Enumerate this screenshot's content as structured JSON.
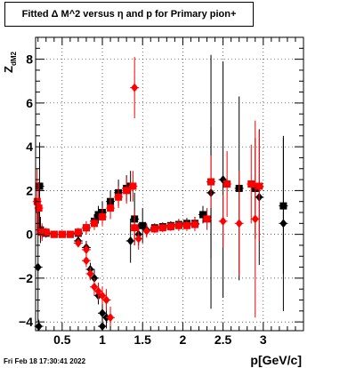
{
  "title": "Fitted Δ M^2 versus η and p for Primary pion+",
  "footer_timestamp": "Fri Feb 18 17:30:41 2022",
  "chart_data": {
    "type": "scatter",
    "title": "Fitted Δ M^2 versus η and p for Primary pion+",
    "xlabel": "p[GeV/c]",
    "ylabel_main": "Z",
    "ylabel_sub": "dM2",
    "xlim": [
      0.17,
      3.5
    ],
    "ylim": [
      -4.4,
      9.0
    ],
    "x_ticks": [
      0.5,
      1,
      1.5,
      2,
      2.5,
      3
    ],
    "x_tick_labels": [
      "0.5",
      "1",
      "1.5",
      "2",
      "2.5",
      "3"
    ],
    "y_ticks": [
      -4,
      -2,
      0,
      2,
      4,
      6,
      8
    ],
    "y_tick_labels": [
      "−4",
      "−2",
      "0",
      "2",
      "4",
      "6",
      "8"
    ],
    "grid": true,
    "colors": {
      "black_series": "#000000",
      "red_series": "#ff0000"
    },
    "series": [
      {
        "color": "black",
        "marker_shapes": "square and diamond",
        "points": [
          {
            "x": 0.22,
            "y": 2.2,
            "yerr": 2.0,
            "shape": "square"
          },
          {
            "x": 0.2,
            "y": -1.5,
            "yerr": 2.5,
            "shape": "diamond"
          },
          {
            "x": 0.21,
            "y": -4.2,
            "yerr": 0.3,
            "shape": "diamond"
          },
          {
            "x": 0.23,
            "y": 0.2,
            "yerr": 0.6,
            "shape": "square"
          },
          {
            "x": 0.25,
            "y": 0.1,
            "yerr": 0.3,
            "shape": "square"
          },
          {
            "x": 0.3,
            "y": 0.05,
            "yerr": 0.2,
            "shape": "square"
          },
          {
            "x": 0.4,
            "y": 0.0,
            "yerr": 0.15,
            "shape": "square"
          },
          {
            "x": 0.5,
            "y": 0.0,
            "yerr": 0.15,
            "shape": "square"
          },
          {
            "x": 0.6,
            "y": 0.0,
            "yerr": 0.15,
            "shape": "square"
          },
          {
            "x": 0.7,
            "y": 0.05,
            "yerr": 0.2,
            "shape": "square"
          },
          {
            "x": 0.8,
            "y": 0.3,
            "yerr": 0.3,
            "shape": "square"
          },
          {
            "x": 0.9,
            "y": 0.6,
            "yerr": 0.3,
            "shape": "square"
          },
          {
            "x": 0.95,
            "y": 0.9,
            "yerr": 0.4,
            "shape": "square"
          },
          {
            "x": 1.0,
            "y": 1.0,
            "yerr": 0.5,
            "shape": "square"
          },
          {
            "x": 1.1,
            "y": 1.5,
            "yerr": 0.5,
            "shape": "square"
          },
          {
            "x": 1.2,
            "y": 1.9,
            "yerr": 0.6,
            "shape": "square"
          },
          {
            "x": 1.3,
            "y": 2.1,
            "yerr": 0.6,
            "shape": "square"
          },
          {
            "x": 1.35,
            "y": 2.2,
            "yerr": 0.7,
            "shape": "square"
          },
          {
            "x": 0.7,
            "y": -0.3,
            "yerr": 0.2,
            "shape": "diamond"
          },
          {
            "x": 0.8,
            "y": -0.6,
            "yerr": 0.3,
            "shape": "diamond"
          },
          {
            "x": 0.85,
            "y": -1.6,
            "yerr": 0.3,
            "shape": "diamond"
          },
          {
            "x": 0.9,
            "y": -2.0,
            "yerr": 0.4,
            "shape": "diamond"
          },
          {
            "x": 0.95,
            "y": -2.8,
            "yerr": 0.4,
            "shape": "diamond"
          },
          {
            "x": 1.0,
            "y": -3.6,
            "yerr": 0.5,
            "shape": "diamond"
          },
          {
            "x": 1.05,
            "y": -3.8,
            "yerr": 0.5,
            "shape": "diamond"
          },
          {
            "x": 1.0,
            "y": -4.2,
            "yerr": 0.4,
            "shape": "diamond"
          },
          {
            "x": 1.4,
            "y": 0.7,
            "yerr": 1.2,
            "shape": "square"
          },
          {
            "x": 1.35,
            "y": -0.3,
            "yerr": 1.0,
            "shape": "diamond"
          },
          {
            "x": 1.5,
            "y": 0.4,
            "yerr": 0.8,
            "shape": "square"
          },
          {
            "x": 1.45,
            "y": 0.0,
            "yerr": 0.5,
            "shape": "diamond"
          },
          {
            "x": 1.55,
            "y": 0.2,
            "yerr": 0.3,
            "shape": "diamond"
          },
          {
            "x": 1.65,
            "y": 0.3,
            "yerr": 0.2,
            "shape": "square"
          },
          {
            "x": 1.75,
            "y": 0.35,
            "yerr": 0.2,
            "shape": "square"
          },
          {
            "x": 1.85,
            "y": 0.4,
            "yerr": 0.2,
            "shape": "square"
          },
          {
            "x": 1.95,
            "y": 0.45,
            "yerr": 0.25,
            "shape": "square"
          },
          {
            "x": 2.05,
            "y": 0.5,
            "yerr": 0.25,
            "shape": "square"
          },
          {
            "x": 2.15,
            "y": 0.5,
            "yerr": 0.3,
            "shape": "square"
          },
          {
            "x": 2.25,
            "y": 0.9,
            "yerr": 0.4,
            "shape": "square"
          },
          {
            "x": 2.35,
            "y": 2.4,
            "yerr": 5.8,
            "shape": "square"
          },
          {
            "x": 2.35,
            "y": 1.9,
            "yerr": 3.0,
            "shape": "diamond"
          },
          {
            "x": 2.5,
            "y": 2.5,
            "yerr": 5.4,
            "shape": "diamond"
          },
          {
            "x": 2.7,
            "y": 2.1,
            "yerr": 4.2,
            "shape": "square"
          },
          {
            "x": 2.9,
            "y": 2.1,
            "yerr": 2.3,
            "shape": "square"
          },
          {
            "x": 2.95,
            "y": 1.7,
            "yerr": 3.1,
            "shape": "diamond"
          },
          {
            "x": 3.25,
            "y": 1.3,
            "yerr": 3.1,
            "shape": "square"
          },
          {
            "x": 3.25,
            "y": 0.5,
            "yerr": 4.0,
            "shape": "diamond"
          }
        ]
      },
      {
        "color": "red",
        "marker_shapes": "square and diamond",
        "points": [
          {
            "x": 0.19,
            "y": 1.5,
            "yerr": 1.5,
            "shape": "square"
          },
          {
            "x": 0.21,
            "y": 1.2,
            "yerr": 1.2,
            "shape": "square"
          },
          {
            "x": 0.25,
            "y": 0.1,
            "yerr": 0.4,
            "shape": "square"
          },
          {
            "x": 0.3,
            "y": 0.1,
            "yerr": 0.2,
            "shape": "square"
          },
          {
            "x": 0.4,
            "y": 0.0,
            "yerr": 0.15,
            "shape": "square"
          },
          {
            "x": 0.5,
            "y": 0.0,
            "yerr": 0.15,
            "shape": "square"
          },
          {
            "x": 0.6,
            "y": 0.0,
            "yerr": 0.15,
            "shape": "square"
          },
          {
            "x": 0.7,
            "y": 0.1,
            "yerr": 0.2,
            "shape": "square"
          },
          {
            "x": 0.8,
            "y": 0.3,
            "yerr": 0.3,
            "shape": "square"
          },
          {
            "x": 0.9,
            "y": 0.5,
            "yerr": 0.3,
            "shape": "square"
          },
          {
            "x": 1.0,
            "y": 0.8,
            "yerr": 0.4,
            "shape": "square"
          },
          {
            "x": 1.1,
            "y": 1.2,
            "yerr": 0.5,
            "shape": "square"
          },
          {
            "x": 1.2,
            "y": 1.7,
            "yerr": 0.5,
            "shape": "square"
          },
          {
            "x": 1.3,
            "y": 2.0,
            "yerr": 0.6,
            "shape": "square"
          },
          {
            "x": 1.38,
            "y": 2.2,
            "yerr": 0.7,
            "shape": "square"
          },
          {
            "x": 0.7,
            "y": -0.4,
            "yerr": 0.2,
            "shape": "diamond"
          },
          {
            "x": 0.8,
            "y": -0.7,
            "yerr": 0.3,
            "shape": "diamond"
          },
          {
            "x": 0.8,
            "y": -1.2,
            "yerr": 0.3,
            "shape": "diamond"
          },
          {
            "x": 0.85,
            "y": -1.8,
            "yerr": 0.3,
            "shape": "diamond"
          },
          {
            "x": 0.9,
            "y": -2.4,
            "yerr": 0.4,
            "shape": "diamond"
          },
          {
            "x": 0.95,
            "y": -2.6,
            "yerr": 0.4,
            "shape": "diamond"
          },
          {
            "x": 1.0,
            "y": -2.8,
            "yerr": 0.4,
            "shape": "diamond"
          },
          {
            "x": 1.05,
            "y": -3.0,
            "yerr": 0.5,
            "shape": "diamond"
          },
          {
            "x": 1.1,
            "y": -3.8,
            "yerr": 0.5,
            "shape": "diamond"
          },
          {
            "x": 1.4,
            "y": 6.7,
            "yerr": 1.4,
            "shape": "diamond"
          },
          {
            "x": 1.4,
            "y": 0.3,
            "yerr": 0.8,
            "shape": "square"
          },
          {
            "x": 1.45,
            "y": -0.2,
            "yerr": 0.5,
            "shape": "diamond"
          },
          {
            "x": 1.55,
            "y": 0.15,
            "yerr": 0.3,
            "shape": "diamond"
          },
          {
            "x": 1.65,
            "y": 0.25,
            "yerr": 0.2,
            "shape": "square"
          },
          {
            "x": 1.75,
            "y": 0.3,
            "yerr": 0.2,
            "shape": "square"
          },
          {
            "x": 1.85,
            "y": 0.35,
            "yerr": 0.2,
            "shape": "square"
          },
          {
            "x": 1.95,
            "y": 0.4,
            "yerr": 0.25,
            "shape": "square"
          },
          {
            "x": 2.05,
            "y": 0.4,
            "yerr": 0.25,
            "shape": "square"
          },
          {
            "x": 2.15,
            "y": 0.45,
            "yerr": 0.3,
            "shape": "square"
          },
          {
            "x": 2.3,
            "y": 0.7,
            "yerr": 0.5,
            "shape": "square"
          },
          {
            "x": 2.35,
            "y": 2.4,
            "yerr": 1.2,
            "shape": "square"
          },
          {
            "x": 2.5,
            "y": 0.6,
            "yerr": 1.2,
            "shape": "diamond"
          },
          {
            "x": 2.55,
            "y": 2.3,
            "yerr": 1.5,
            "shape": "square"
          },
          {
            "x": 2.7,
            "y": 0.5,
            "yerr": 2.4,
            "shape": "diamond"
          },
          {
            "x": 2.85,
            "y": 2.3,
            "yerr": 1.8,
            "shape": "square"
          },
          {
            "x": 2.9,
            "y": 0.7,
            "yerr": 4.5,
            "shape": "diamond"
          },
          {
            "x": 2.95,
            "y": 2.2,
            "yerr": 2.5,
            "shape": "square"
          }
        ]
      }
    ]
  }
}
